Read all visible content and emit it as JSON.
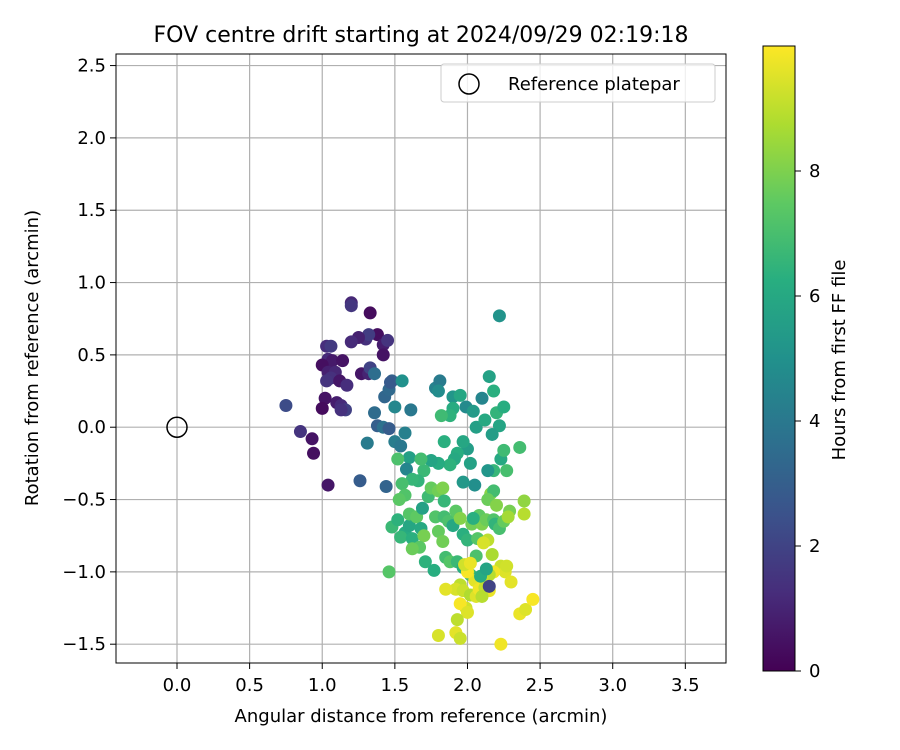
{
  "chart_data": {
    "type": "scatter",
    "title": "FOV centre drift starting at 2024/09/29 02:19:18",
    "xlabel": "Angular distance from reference (arcmin)",
    "ylabel": "Rotation from reference (arcmin)",
    "xlim": [
      -0.42,
      3.78
    ],
    "ylim": [
      -1.63,
      2.58
    ],
    "xticks": [
      "0.0",
      "0.5",
      "1.0",
      "1.5",
      "2.0",
      "2.5",
      "3.0",
      "3.5"
    ],
    "yticks": [
      "2.5",
      "2.0",
      "1.5",
      "1.0",
      "0.5",
      "0.0",
      "−0.5",
      "−1.0",
      "−1.5"
    ],
    "grid": true,
    "legend": {
      "position": "top-right",
      "label": "Reference platepar",
      "marker": "open-circle"
    },
    "reference_point": {
      "x": 0.0,
      "y": 0.0
    },
    "colorbar": {
      "label": "Hours from first FF file",
      "min": 0,
      "max": 10,
      "ticks": [
        "0",
        "2",
        "4",
        "6",
        "8"
      ],
      "colormap": "viridis"
    },
    "series": [
      {
        "points": [
          {
            "x": 1.2,
            "y": 0.86,
            "t": 1.1
          },
          {
            "x": 1.2,
            "y": 0.84,
            "t": 1.6
          },
          {
            "x": 1.33,
            "y": 0.79,
            "t": 0.3
          },
          {
            "x": 1.38,
            "y": 0.64,
            "t": 0.4
          },
          {
            "x": 1.42,
            "y": 0.57,
            "t": 0.8
          },
          {
            "x": 1.42,
            "y": 0.5,
            "t": 0.5
          },
          {
            "x": 1.45,
            "y": 0.6,
            "t": 1.5
          },
          {
            "x": 1.3,
            "y": 0.61,
            "t": 1.4
          },
          {
            "x": 1.32,
            "y": 0.64,
            "t": 1.8
          },
          {
            "x": 1.25,
            "y": 0.62,
            "t": 0.9
          },
          {
            "x": 1.2,
            "y": 0.59,
            "t": 1.2
          },
          {
            "x": 1.27,
            "y": 0.37,
            "t": 0.6
          },
          {
            "x": 1.32,
            "y": 0.37,
            "t": 1.0
          },
          {
            "x": 1.33,
            "y": 0.41,
            "t": 2.0
          },
          {
            "x": 1.03,
            "y": 0.56,
            "t": 1.3
          },
          {
            "x": 1.06,
            "y": 0.56,
            "t": 1.7
          },
          {
            "x": 1.04,
            "y": 0.47,
            "t": 1.2
          },
          {
            "x": 1.07,
            "y": 0.46,
            "t": 0.7
          },
          {
            "x": 1.14,
            "y": 0.46,
            "t": 0.5
          },
          {
            "x": 1.0,
            "y": 0.43,
            "t": 0.4
          },
          {
            "x": 1.04,
            "y": 0.38,
            "t": 0.9
          },
          {
            "x": 1.09,
            "y": 0.38,
            "t": 1.1
          },
          {
            "x": 1.06,
            "y": 0.34,
            "t": 1.4
          },
          {
            "x": 1.03,
            "y": 0.32,
            "t": 1.5
          },
          {
            "x": 1.12,
            "y": 0.32,
            "t": 0.6
          },
          {
            "x": 1.17,
            "y": 0.29,
            "t": 1.3
          },
          {
            "x": 1.02,
            "y": 0.2,
            "t": 0.5
          },
          {
            "x": 1.1,
            "y": 0.17,
            "t": 0.8
          },
          {
            "x": 1.13,
            "y": 0.15,
            "t": 1.2
          },
          {
            "x": 1.0,
            "y": 0.13,
            "t": 0.3
          },
          {
            "x": 1.16,
            "y": 0.12,
            "t": 1.9
          },
          {
            "x": 1.13,
            "y": 0.12,
            "t": 1.4
          },
          {
            "x": 0.75,
            "y": 0.15,
            "t": 2.3
          },
          {
            "x": 0.85,
            "y": -0.03,
            "t": 1.5
          },
          {
            "x": 0.93,
            "y": -0.08,
            "t": 0.5
          },
          {
            "x": 0.94,
            "y": -0.18,
            "t": 0.4
          },
          {
            "x": 1.04,
            "y": -0.4,
            "t": 0.6
          },
          {
            "x": 1.26,
            "y": -0.37,
            "t": 2.9
          },
          {
            "x": 1.36,
            "y": 0.37,
            "t": 3.6
          },
          {
            "x": 1.43,
            "y": 0.21,
            "t": 3.3
          },
          {
            "x": 1.46,
            "y": 0.26,
            "t": 3.4
          },
          {
            "x": 1.48,
            "y": 0.32,
            "t": 3.1
          },
          {
            "x": 1.47,
            "y": 0.31,
            "t": 2.8
          },
          {
            "x": 1.36,
            "y": 0.1,
            "t": 3.5
          },
          {
            "x": 1.38,
            "y": 0.01,
            "t": 3.0
          },
          {
            "x": 1.42,
            "y": 0.0,
            "t": 3.7
          },
          {
            "x": 1.46,
            "y": -0.01,
            "t": 2.9
          },
          {
            "x": 1.31,
            "y": -0.11,
            "t": 4.1
          },
          {
            "x": 1.44,
            "y": -0.41,
            "t": 3.2
          },
          {
            "x": 1.5,
            "y": -0.1,
            "t": 4.2
          },
          {
            "x": 1.54,
            "y": -0.13,
            "t": 4.0
          },
          {
            "x": 1.57,
            "y": -0.04,
            "t": 4.3
          },
          {
            "x": 1.5,
            "y": 0.14,
            "t": 4.6
          },
          {
            "x": 1.61,
            "y": 0.12,
            "t": 4.0
          },
          {
            "x": 1.55,
            "y": 0.32,
            "t": 5.0
          },
          {
            "x": 1.78,
            "y": 0.27,
            "t": 4.4
          },
          {
            "x": 1.81,
            "y": 0.32,
            "t": 4.1
          },
          {
            "x": 1.8,
            "y": 0.25,
            "t": 4.8
          },
          {
            "x": 1.9,
            "y": 0.21,
            "t": 5.2
          },
          {
            "x": 1.99,
            "y": 0.14,
            "t": 4.7
          },
          {
            "x": 2.1,
            "y": 0.2,
            "t": 4.5
          },
          {
            "x": 2.15,
            "y": 0.35,
            "t": 5.7
          },
          {
            "x": 2.22,
            "y": 0.77,
            "t": 5.1
          },
          {
            "x": 1.95,
            "y": 0.22,
            "t": 5.9
          },
          {
            "x": 1.9,
            "y": 0.13,
            "t": 6.1
          },
          {
            "x": 1.88,
            "y": 0.08,
            "t": 6.4
          },
          {
            "x": 1.82,
            "y": 0.08,
            "t": 6.8
          },
          {
            "x": 2.04,
            "y": 0.11,
            "t": 5.4
          },
          {
            "x": 2.06,
            "y": 0.0,
            "t": 5.6
          },
          {
            "x": 2.12,
            "y": 0.05,
            "t": 6.0
          },
          {
            "x": 2.18,
            "y": 0.25,
            "t": 6.3
          },
          {
            "x": 2.2,
            "y": 0.1,
            "t": 6.5
          },
          {
            "x": 2.22,
            "y": 0.01,
            "t": 5.8
          },
          {
            "x": 2.25,
            "y": 0.14,
            "t": 6.2
          },
          {
            "x": 2.17,
            "y": -0.05,
            "t": 5.5
          },
          {
            "x": 2.23,
            "y": -0.22,
            "t": 6.0
          },
          {
            "x": 2.18,
            "y": -0.3,
            "t": 6.6
          },
          {
            "x": 2.14,
            "y": -0.3,
            "t": 5.2
          },
          {
            "x": 2.25,
            "y": -0.16,
            "t": 6.8
          },
          {
            "x": 2.27,
            "y": -0.3,
            "t": 7.0
          },
          {
            "x": 2.36,
            "y": -0.14,
            "t": 6.9
          },
          {
            "x": 2.05,
            "y": -0.4,
            "t": 4.9
          },
          {
            "x": 1.97,
            "y": -0.38,
            "t": 5.3
          },
          {
            "x": 2.0,
            "y": -0.15,
            "t": 5.5
          },
          {
            "x": 2.02,
            "y": -0.25,
            "t": 5.7
          },
          {
            "x": 1.97,
            "y": -0.1,
            "t": 5.9
          },
          {
            "x": 1.93,
            "y": -0.18,
            "t": 6.2
          },
          {
            "x": 1.91,
            "y": -0.22,
            "t": 6.0
          },
          {
            "x": 1.88,
            "y": -0.26,
            "t": 6.4
          },
          {
            "x": 1.84,
            "y": -0.1,
            "t": 6.3
          },
          {
            "x": 1.8,
            "y": -0.25,
            "t": 6.1
          },
          {
            "x": 1.75,
            "y": -0.23,
            "t": 5.8
          },
          {
            "x": 1.7,
            "y": -0.3,
            "t": 6.7
          },
          {
            "x": 1.66,
            "y": -0.37,
            "t": 6.5
          },
          {
            "x": 1.6,
            "y": -0.21,
            "t": 5.6
          },
          {
            "x": 1.58,
            "y": -0.29,
            "t": 4.5
          },
          {
            "x": 1.62,
            "y": -0.36,
            "t": 6.6
          },
          {
            "x": 1.68,
            "y": -0.22,
            "t": 6.9
          },
          {
            "x": 1.52,
            "y": -0.22,
            "t": 7.1
          },
          {
            "x": 1.55,
            "y": -0.39,
            "t": 7.0
          },
          {
            "x": 1.57,
            "y": -0.47,
            "t": 7.2
          },
          {
            "x": 1.53,
            "y": -0.5,
            "t": 7.4
          },
          {
            "x": 1.48,
            "y": -0.69,
            "t": 6.7
          },
          {
            "x": 1.52,
            "y": -0.64,
            "t": 6.4
          },
          {
            "x": 1.57,
            "y": -0.73,
            "t": 6.1
          },
          {
            "x": 1.54,
            "y": -0.76,
            "t": 6.6
          },
          {
            "x": 1.62,
            "y": -0.77,
            "t": 6.3
          },
          {
            "x": 1.6,
            "y": -0.68,
            "t": 5.9
          },
          {
            "x": 1.6,
            "y": -0.6,
            "t": 7.3
          },
          {
            "x": 1.65,
            "y": -0.62,
            "t": 7.5
          },
          {
            "x": 1.68,
            "y": -0.7,
            "t": 6.0
          },
          {
            "x": 1.69,
            "y": -0.56,
            "t": 5.7
          },
          {
            "x": 1.73,
            "y": -0.48,
            "t": 6.8
          },
          {
            "x": 1.75,
            "y": -0.42,
            "t": 7.6
          },
          {
            "x": 1.8,
            "y": -0.44,
            "t": 7.8
          },
          {
            "x": 1.83,
            "y": -0.42,
            "t": 8.0
          },
          {
            "x": 1.78,
            "y": -0.62,
            "t": 7.2
          },
          {
            "x": 1.8,
            "y": -0.72,
            "t": 7.6
          },
          {
            "x": 1.7,
            "y": -0.75,
            "t": 7.9
          },
          {
            "x": 1.67,
            "y": -0.83,
            "t": 7.4
          },
          {
            "x": 1.62,
            "y": -0.84,
            "t": 7.7
          },
          {
            "x": 1.71,
            "y": -0.93,
            "t": 6.4
          },
          {
            "x": 1.77,
            "y": -0.99,
            "t": 6.2
          },
          {
            "x": 1.46,
            "y": -1.0,
            "t": 7.3
          },
          {
            "x": 1.84,
            "y": -0.51,
            "t": 6.6
          },
          {
            "x": 1.84,
            "y": -0.62,
            "t": 6.9
          },
          {
            "x": 1.83,
            "y": -0.79,
            "t": 7.8
          },
          {
            "x": 1.87,
            "y": -0.65,
            "t": 7.1
          },
          {
            "x": 1.9,
            "y": -0.68,
            "t": 6.0
          },
          {
            "x": 1.92,
            "y": -0.58,
            "t": 7.4
          },
          {
            "x": 1.95,
            "y": -0.63,
            "t": 8.1
          },
          {
            "x": 1.97,
            "y": -0.74,
            "t": 6.3
          },
          {
            "x": 2.0,
            "y": -0.78,
            "t": 6.5
          },
          {
            "x": 1.85,
            "y": -0.9,
            "t": 6.9
          },
          {
            "x": 1.88,
            "y": -0.93,
            "t": 7.3
          },
          {
            "x": 1.93,
            "y": -0.93,
            "t": 6.7
          },
          {
            "x": 1.97,
            "y": -0.97,
            "t": 6.2
          },
          {
            "x": 2.02,
            "y": -1.02,
            "t": 6.8
          },
          {
            "x": 2.06,
            "y": -0.89,
            "t": 7.1
          },
          {
            "x": 2.07,
            "y": -0.77,
            "t": 7.3
          },
          {
            "x": 2.03,
            "y": -0.67,
            "t": 7.8
          },
          {
            "x": 2.08,
            "y": -0.61,
            "t": 7.5
          },
          {
            "x": 2.1,
            "y": -0.67,
            "t": 8.0
          },
          {
            "x": 2.13,
            "y": -0.64,
            "t": 7.7
          },
          {
            "x": 2.18,
            "y": -0.64,
            "t": 7.2
          },
          {
            "x": 2.19,
            "y": -0.67,
            "t": 6.5
          },
          {
            "x": 2.22,
            "y": -0.7,
            "t": 7.0
          },
          {
            "x": 2.25,
            "y": -0.65,
            "t": 7.6
          },
          {
            "x": 2.29,
            "y": -0.58,
            "t": 7.9
          },
          {
            "x": 2.16,
            "y": -0.46,
            "t": 8.2
          },
          {
            "x": 2.18,
            "y": -0.44,
            "t": 6.9
          },
          {
            "x": 2.14,
            "y": -0.5,
            "t": 7.7
          },
          {
            "x": 2.2,
            "y": -0.54,
            "t": 8.1
          },
          {
            "x": 2.39,
            "y": -0.51,
            "t": 8.3
          },
          {
            "x": 2.39,
            "y": -0.6,
            "t": 8.9
          },
          {
            "x": 2.28,
            "y": -0.62,
            "t": 8.6
          },
          {
            "x": 2.14,
            "y": -0.78,
            "t": 9.0
          },
          {
            "x": 2.11,
            "y": -0.8,
            "t": 9.4
          },
          {
            "x": 2.17,
            "y": -0.88,
            "t": 8.7
          },
          {
            "x": 2.23,
            "y": -0.96,
            "t": 9.2
          },
          {
            "x": 2.26,
            "y": -1.0,
            "t": 9.5
          },
          {
            "x": 2.18,
            "y": -1.0,
            "t": 9.8
          },
          {
            "x": 2.15,
            "y": -1.02,
            "t": 8.9
          },
          {
            "x": 2.1,
            "y": -1.05,
            "t": 9.1
          },
          {
            "x": 2.05,
            "y": -1.06,
            "t": 9.6
          },
          {
            "x": 2.0,
            "y": -1.0,
            "t": 9.9
          },
          {
            "x": 1.98,
            "y": -0.95,
            "t": 9.3
          },
          {
            "x": 2.02,
            "y": -0.94,
            "t": 9.7
          },
          {
            "x": 1.95,
            "y": -1.09,
            "t": 9.0
          },
          {
            "x": 1.92,
            "y": -1.12,
            "t": 9.4
          },
          {
            "x": 1.85,
            "y": -1.12,
            "t": 9.6
          },
          {
            "x": 1.97,
            "y": -1.13,
            "t": 9.2
          },
          {
            "x": 2.02,
            "y": -1.16,
            "t": 8.8
          },
          {
            "x": 2.06,
            "y": -1.17,
            "t": 9.5
          },
          {
            "x": 2.08,
            "y": -1.12,
            "t": 9.8
          },
          {
            "x": 2.12,
            "y": -1.11,
            "t": 9.1
          },
          {
            "x": 2.15,
            "y": -1.13,
            "t": 9.7
          },
          {
            "x": 1.99,
            "y": -1.25,
            "t": 9.3
          },
          {
            "x": 1.95,
            "y": -1.22,
            "t": 9.9
          },
          {
            "x": 2.0,
            "y": -1.28,
            "t": 9.5
          },
          {
            "x": 1.93,
            "y": -1.33,
            "t": 9.0
          },
          {
            "x": 1.8,
            "y": -1.44,
            "t": 9.4
          },
          {
            "x": 1.92,
            "y": -1.42,
            "t": 9.6
          },
          {
            "x": 1.95,
            "y": -1.46,
            "t": 9.2
          },
          {
            "x": 2.1,
            "y": -1.17,
            "t": 8.9
          },
          {
            "x": 2.15,
            "y": -1.1,
            "t": 2.0
          },
          {
            "x": 2.23,
            "y": -1.5,
            "t": 9.8
          },
          {
            "x": 2.36,
            "y": -1.29,
            "t": 9.7
          },
          {
            "x": 2.4,
            "y": -1.26,
            "t": 9.5
          },
          {
            "x": 2.45,
            "y": -1.19,
            "t": 9.9
          },
          {
            "x": 2.3,
            "y": -1.07,
            "t": 9.6
          },
          {
            "x": 2.27,
            "y": -0.96,
            "t": 9.3
          },
          {
            "x": 2.09,
            "y": -1.03,
            "t": 6.1
          },
          {
            "x": 2.13,
            "y": -0.98,
            "t": 5.8
          },
          {
            "x": 2.04,
            "y": -0.63,
            "t": 6.3
          }
        ]
      }
    ]
  }
}
